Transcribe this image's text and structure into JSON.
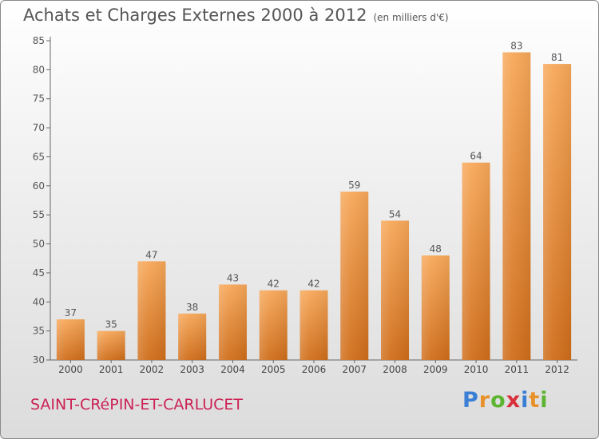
{
  "header": {
    "title": "Achats et Charges Externes 2000 à 2012",
    "subtitle": "(en milliers d'€)"
  },
  "footer": {
    "commune": "SAINT-CRéPIN-ET-CARLUCET",
    "brand": {
      "letters": [
        "P",
        "r",
        "o",
        "x",
        "i",
        "t",
        "i"
      ],
      "colors": [
        "#3a7fd5",
        "#e8912a",
        "#5cb531",
        "#d8313c",
        "#3a7fd5",
        "#e8912a",
        "#5cb531"
      ]
    }
  },
  "colors": {
    "bar_top": "#f7a85a",
    "bar_bottom": "#cf6d1a",
    "axis": "#666666",
    "grid": "#e0e0e0"
  },
  "chart_data": {
    "type": "bar",
    "categories": [
      "2000",
      "2001",
      "2002",
      "2003",
      "2004",
      "2005",
      "2006",
      "2007",
      "2008",
      "2009",
      "2010",
      "2011",
      "2012"
    ],
    "values": [
      37,
      35,
      47,
      38,
      43,
      42,
      42,
      59,
      54,
      48,
      64,
      83,
      81
    ],
    "ylim": [
      30,
      85
    ],
    "yticks": [
      30,
      35,
      40,
      45,
      50,
      55,
      60,
      65,
      70,
      75,
      80,
      85
    ],
    "grid": false,
    "data_labels": true
  }
}
